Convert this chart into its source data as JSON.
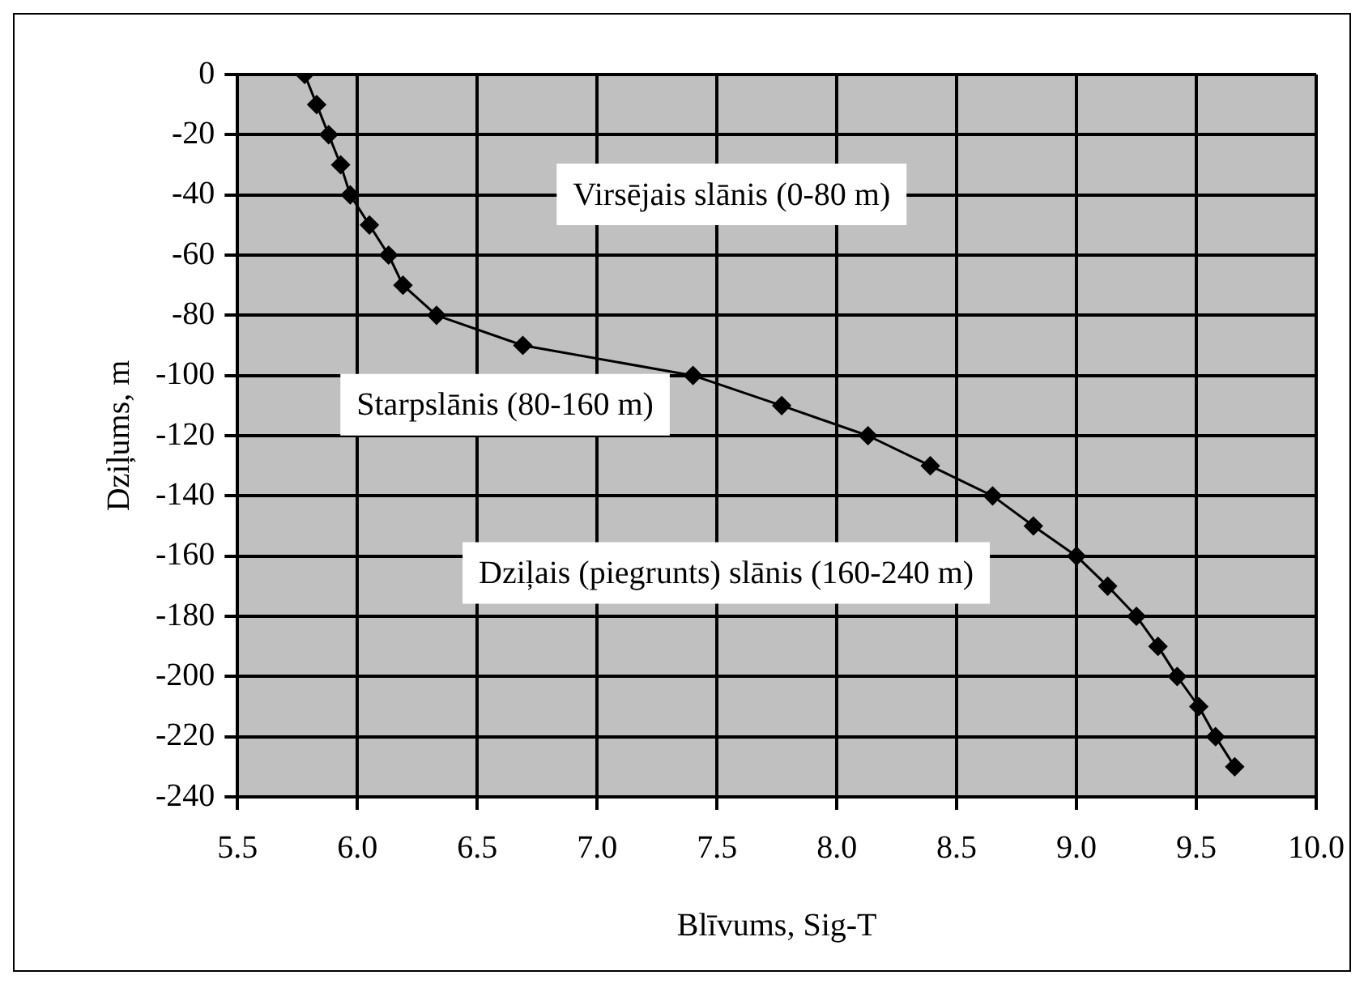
{
  "chart_data": {
    "type": "line",
    "xlabel": "Blīvums, Sig-T",
    "ylabel": "Dziļums, m",
    "x": [
      5.78,
      5.83,
      5.88,
      5.93,
      5.97,
      6.05,
      6.13,
      6.19,
      6.33,
      6.69,
      7.4,
      7.77,
      8.13,
      8.39,
      8.65,
      8.82,
      9.0,
      9.13,
      9.25,
      9.34,
      9.42,
      9.51,
      9.58,
      9.66
    ],
    "series": [
      {
        "color": "#000000",
        "values": [
          0,
          -10,
          -20,
          -30,
          -40,
          -50,
          -60,
          -70,
          -80,
          -90,
          -100,
          -110,
          -120,
          -130,
          -140,
          -150,
          -160,
          -170,
          -180,
          -190,
          -200,
          -210,
          -220,
          -230
        ]
      }
    ],
    "xlim": [
      5.5,
      10.0
    ],
    "xticks": [
      {
        "value": 5.5,
        "label": "5.5"
      },
      {
        "value": 6,
        "label": "6.0"
      },
      {
        "value": 6.5,
        "label": "6.5"
      },
      {
        "value": 7,
        "label": "7.0"
      },
      {
        "value": 7.5,
        "label": "7.5"
      },
      {
        "value": 8,
        "label": "8.0"
      },
      {
        "value": 8.5,
        "label": "8.5"
      },
      {
        "value": 9,
        "label": "9.0"
      },
      {
        "value": 9.5,
        "label": "9.5"
      },
      {
        "value": 10,
        "label": "10.0"
      }
    ],
    "ylim": [
      -240,
      0
    ],
    "yticks": [
      0,
      -20,
      -40,
      -60,
      -80,
      -100,
      -120,
      -140,
      -160,
      -180,
      -200,
      -220,
      -240
    ],
    "grid": true,
    "legend": false,
    "marker": "diamond",
    "line_style": "solid",
    "annotations": [
      "Virsējais slānis (0-80 m)",
      "Starpslānis (80-160 m)",
      "Dziļais (piegrunts) slānis (160-240 m)"
    ]
  }
}
